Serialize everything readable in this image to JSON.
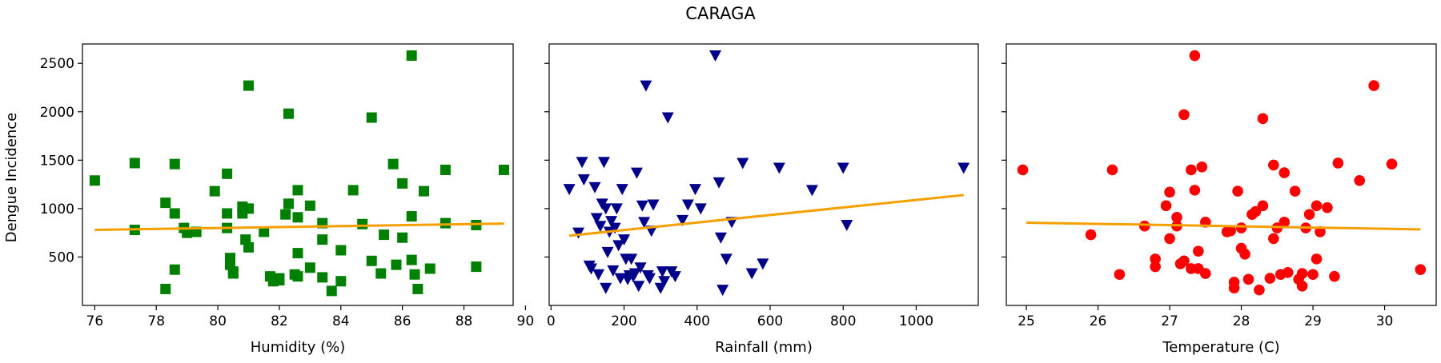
{
  "title": "CARAGA",
  "ylabel": "Dengue Incidence",
  "trend_color": "#f5a000",
  "chart_data": [
    {
      "type": "scatter",
      "xlabel": "Humidity (%)",
      "ylabel": "Dengue Incidence",
      "xlim": [
        75.6,
        89.6
      ],
      "ylim": [
        0,
        2700
      ],
      "xticks": [
        76,
        78,
        80,
        82,
        84,
        86,
        88,
        90
      ],
      "yticks": [
        500,
        1000,
        1500,
        2000,
        2500
      ],
      "marker": "square",
      "color": "#008000",
      "trend": {
        "x": [
          76,
          89.3
        ],
        "y": [
          780,
          845
        ]
      },
      "x": [
        76.0,
        77.3,
        77.3,
        78.3,
        78.3,
        78.6,
        78.6,
        78.6,
        78.9,
        79.0,
        79.3,
        79.9,
        80.3,
        80.3,
        80.3,
        80.4,
        80.4,
        80.5,
        80.5,
        80.8,
        80.8,
        80.9,
        81.0,
        81.0,
        81.0,
        81.5,
        81.7,
        81.8,
        82.0,
        82.0,
        82.2,
        82.3,
        82.3,
        82.5,
        82.6,
        82.6,
        82.6,
        82.6,
        83.0,
        83.0,
        83.4,
        83.4,
        83.4,
        83.7,
        84.0,
        84.0,
        84.4,
        84.7,
        85.0,
        85.0,
        85.3,
        85.4,
        85.7,
        85.8,
        86.0,
        86.0,
        86.3,
        86.3,
        86.3,
        86.4,
        86.5,
        86.7,
        86.9,
        87.4,
        87.4,
        88.4,
        88.4,
        89.3
      ],
      "y": [
        1290,
        1470,
        780,
        1060,
        170,
        1460,
        950,
        370,
        800,
        750,
        760,
        1180,
        1360,
        950,
        800,
        490,
        420,
        350,
        330,
        1020,
        950,
        680,
        2270,
        1000,
        600,
        760,
        300,
        250,
        280,
        260,
        940,
        1980,
        1050,
        320,
        300,
        1190,
        910,
        540,
        390,
        1030,
        680,
        850,
        290,
        150,
        570,
        250,
        1190,
        840,
        1940,
        460,
        330,
        730,
        1460,
        420,
        700,
        1260,
        2580,
        920,
        470,
        320,
        170,
        1180,
        380,
        1400,
        850,
        400,
        830,
        1400
      ]
    },
    {
      "type": "scatter",
      "xlabel": "Rainfall (mm)",
      "xlim": [
        -5,
        1170
      ],
      "ylim": [
        0,
        2700
      ],
      "xticks": [
        0,
        200,
        400,
        600,
        800,
        1000
      ],
      "yticks": [
        500,
        1000,
        1500,
        2000,
        2500
      ],
      "marker": "triangle-down",
      "color": "#00008b",
      "trend": {
        "x": [
          50,
          1130
        ],
        "y": [
          720,
          1140
        ]
      },
      "x": [
        50,
        75,
        85,
        90,
        105,
        110,
        120,
        125,
        130,
        135,
        140,
        145,
        150,
        150,
        155,
        160,
        165,
        170,
        175,
        180,
        185,
        190,
        195,
        200,
        205,
        210,
        215,
        220,
        225,
        230,
        235,
        240,
        245,
        250,
        255,
        260,
        265,
        270,
        275,
        280,
        300,
        305,
        310,
        320,
        330,
        340,
        360,
        375,
        395,
        410,
        450,
        460,
        465,
        470,
        480,
        495,
        525,
        550,
        580,
        625,
        715,
        800,
        810,
        1130
      ],
      "y": [
        1200,
        750,
        1480,
        1300,
        410,
        380,
        1220,
        900,
        320,
        820,
        1050,
        1480,
        1000,
        180,
        550,
        760,
        870,
        360,
        800,
        1000,
        620,
        280,
        1200,
        680,
        480,
        270,
        310,
        480,
        300,
        330,
        1370,
        200,
        390,
        1030,
        860,
        2270,
        310,
        280,
        770,
        1040,
        180,
        350,
        250,
        1940,
        350,
        300,
        880,
        1040,
        1200,
        1000,
        2580,
        1270,
        700,
        160,
        480,
        860,
        1470,
        330,
        430,
        1420,
        1190,
        1420,
        830,
        1420
      ]
    },
    {
      "type": "scatter",
      "xlabel": "Temperature (C)",
      "xlim": [
        24.72,
        30.72
      ],
      "ylim": [
        0,
        2700
      ],
      "xticks": [
        25,
        26,
        27,
        28,
        29,
        30
      ],
      "yticks": [
        500,
        1000,
        1500,
        2000,
        2500
      ],
      "marker": "circle",
      "color": "#ff0000",
      "trend": {
        "x": [
          25.0,
          30.5
        ],
        "y": [
          855,
          785
        ]
      },
      "x": [
        24.95,
        25.9,
        26.2,
        26.3,
        26.65,
        26.8,
        26.8,
        26.95,
        27.0,
        27.0,
        27.1,
        27.1,
        27.15,
        27.2,
        27.2,
        27.3,
        27.3,
        27.35,
        27.35,
        27.4,
        27.4,
        27.45,
        27.5,
        27.5,
        27.8,
        27.85,
        27.9,
        27.9,
        27.95,
        28.0,
        28.0,
        28.05,
        28.1,
        28.15,
        28.2,
        28.25,
        28.3,
        28.3,
        28.4,
        28.45,
        28.45,
        28.5,
        28.55,
        28.6,
        28.6,
        28.65,
        28.75,
        28.8,
        28.85,
        28.85,
        28.9,
        28.95,
        29.0,
        29.05,
        29.05,
        29.1,
        29.2,
        29.3,
        29.35,
        29.65,
        29.85,
        30.1,
        30.5
      ],
      "y": [
        1400,
        730,
        1400,
        320,
        820,
        480,
        400,
        1030,
        1170,
        690,
        910,
        820,
        430,
        1970,
        460,
        380,
        1400,
        1190,
        2580,
        380,
        560,
        1430,
        860,
        330,
        760,
        770,
        240,
        180,
        1180,
        590,
        800,
        530,
        270,
        940,
        970,
        160,
        1930,
        1030,
        280,
        1450,
        690,
        800,
        320,
        1370,
        860,
        340,
        1180,
        270,
        200,
        330,
        800,
        940,
        320,
        1030,
        480,
        760,
        1010,
        300,
        1470,
        1290,
        2270,
        1460,
        370
      ]
    }
  ]
}
